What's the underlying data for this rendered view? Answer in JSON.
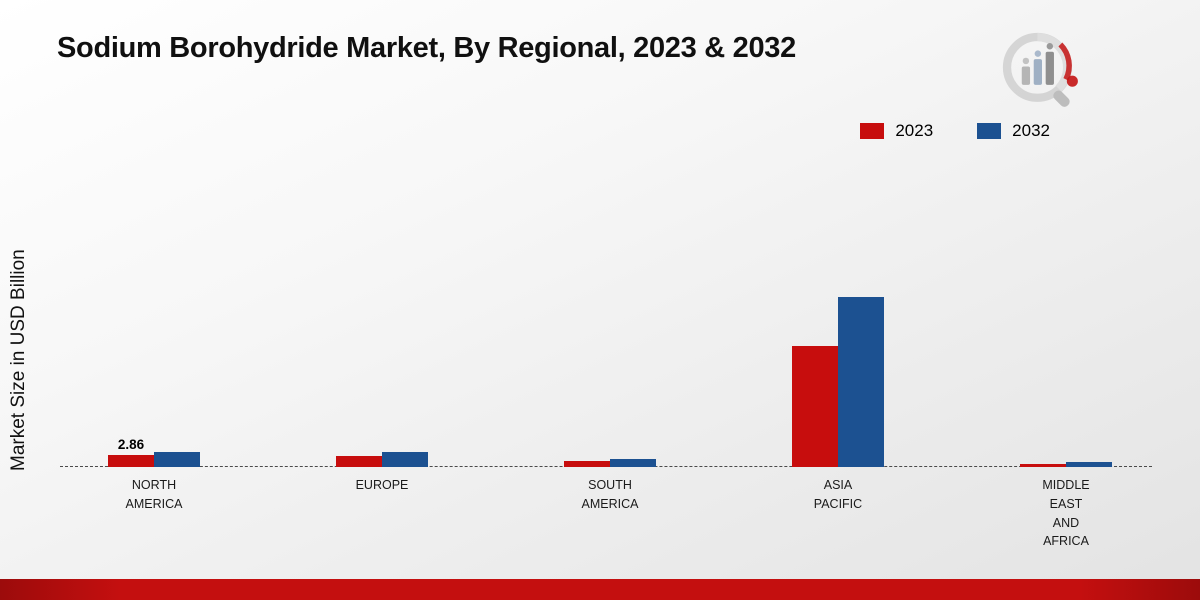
{
  "header": {
    "title": "Sodium Borohydride Market, By Regional, 2023 & 2032",
    "logo": "market-research-future-logo"
  },
  "y_axis": {
    "label": "Market Size in USD Billion"
  },
  "legend": [
    {
      "label": "2023",
      "color": "#c70d0d"
    },
    {
      "label": "2032",
      "color": "#1c5191"
    }
  ],
  "chart_data": {
    "type": "bar",
    "title": "Sodium Borohydride Market, By Regional, 2023 & 2032",
    "ylabel": "Market Size in USD Billion",
    "categories": [
      "NORTH AMERICA",
      "EUROPE",
      "SOUTH AMERICA",
      "ASIA PACIFIC",
      "MIDDLE EAST AND AFRICA"
    ],
    "category_lines": [
      [
        "NORTH",
        "AMERICA"
      ],
      [
        "EUROPE"
      ],
      [
        "SOUTH",
        "AMERICA"
      ],
      [
        "ASIA",
        "PACIFIC"
      ],
      [
        "MIDDLE",
        "EAST",
        "AND",
        "AFRICA"
      ]
    ],
    "series": [
      {
        "name": "2023",
        "color": "#c70d0d",
        "values": [
          2.86,
          2.6,
          1.4,
          28.8,
          0.8
        ]
      },
      {
        "name": "2032",
        "color": "#1c5191",
        "values": [
          3.6,
          3.5,
          2.0,
          40.5,
          1.3
        ]
      }
    ],
    "annotations": [
      {
        "category_index": 0,
        "series_index": 0,
        "text": "2.86"
      }
    ],
    "ylim": [
      0,
      42
    ],
    "grid": false,
    "baseline_style": "dashed",
    "legend_position": "top-right"
  },
  "footer": {
    "bar_color": "#c40f0f"
  }
}
